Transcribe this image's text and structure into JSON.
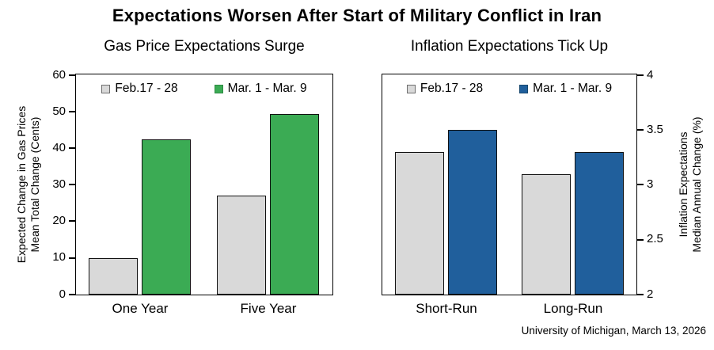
{
  "title": "Expectations Worsen After Start of Military Conflict in Iran",
  "attribution": "University of Michigan, March 13, 2026",
  "colors": {
    "feb_series": "#d9d9d9",
    "mar_series_gas": "#3bab54",
    "mar_series_inflation": "#205f9c",
    "axis": "#000000"
  },
  "chart_data": [
    {
      "type": "bar",
      "title": "Gas Price Expectations Surge",
      "axis_side": "left",
      "ylabel_lines": [
        "Expected Change in Gas Prices",
        "Mean Total Change (Cents)"
      ],
      "ylim": [
        0,
        60
      ],
      "yticks": [
        0,
        10,
        20,
        30,
        40,
        50,
        60
      ],
      "categories": [
        "One Year",
        "Five Year"
      ],
      "series": [
        {
          "name": "Feb.17 - 28",
          "color": "#d9d9d9",
          "swatch_border": "#6e6e6e",
          "values": [
            10,
            27
          ]
        },
        {
          "name": "Mar. 1 - Mar. 9",
          "color": "#3bab54",
          "swatch_border": "#2e8a43",
          "values": [
            42.5,
            49.3
          ]
        }
      ],
      "legend_position": "top",
      "grid": false
    },
    {
      "type": "bar",
      "title": "Inflation Expectations Tick Up",
      "axis_side": "right",
      "ylabel_lines": [
        "Inflation Expectations",
        "Median Annual Change (%)"
      ],
      "ylim": [
        2,
        4
      ],
      "yticks": [
        2,
        2.5,
        3,
        3.5,
        4
      ],
      "categories": [
        "Short-Run",
        "Long-Run"
      ],
      "series": [
        {
          "name": "Feb.17 - 28",
          "color": "#d9d9d9",
          "swatch_border": "#6e6e6e",
          "values": [
            3.3,
            3.1
          ]
        },
        {
          "name": "Mar. 1 - Mar. 9",
          "color": "#205f9c",
          "swatch_border": "#17486f",
          "values": [
            3.5,
            3.3
          ]
        }
      ],
      "legend_position": "top",
      "grid": false
    }
  ]
}
